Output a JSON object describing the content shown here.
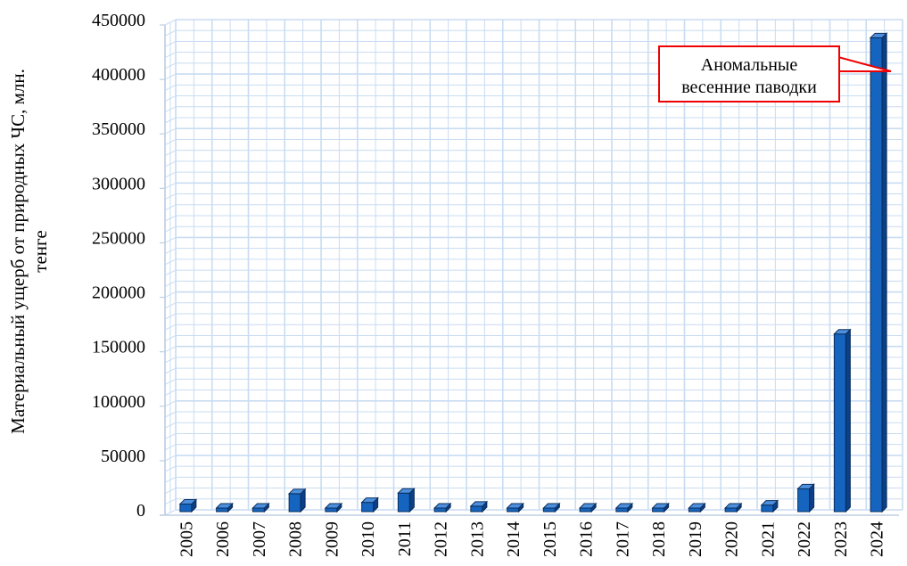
{
  "chart_data": {
    "type": "bar",
    "categories": [
      "2005",
      "2006",
      "2007",
      "2008",
      "2009",
      "2010",
      "2011",
      "2012",
      "2013",
      "2014",
      "2015",
      "2016",
      "2017",
      "2018",
      "2019",
      "2020",
      "2021",
      "2022",
      "2023",
      "2024"
    ],
    "series": [
      {
        "values": [
          7000,
          500,
          500,
          16500,
          300,
          8500,
          17000,
          700,
          5000,
          700,
          300,
          300,
          300,
          300,
          400,
          1500,
          6000,
          21000,
          163000,
          435000
        ]
      }
    ],
    "title": "",
    "xlabel": "",
    "ylabel": "Материальный ущерб от природных ЧС, млн. тенге",
    "ylabel_lines": [
      "Материальный ущерб от природных ЧС, млн.",
      "тенге"
    ],
    "ylim": [
      0,
      450000
    ],
    "yticks": [
      0,
      50000,
      100000,
      150000,
      200000,
      250000,
      300000,
      350000,
      400000,
      450000
    ],
    "grid": true,
    "legend": "none",
    "annotation": {
      "lines": [
        "Аномальные",
        "весенние паводки"
      ],
      "target_category": "2024",
      "border_color": "#ee0000"
    },
    "colors": {
      "bar_front": "#1565c0",
      "bar_side": "#0b3f86",
      "bar_top": "#4d8fdc",
      "bar_edge": "#0a2e5c",
      "grid": "#c9dcf2"
    }
  }
}
